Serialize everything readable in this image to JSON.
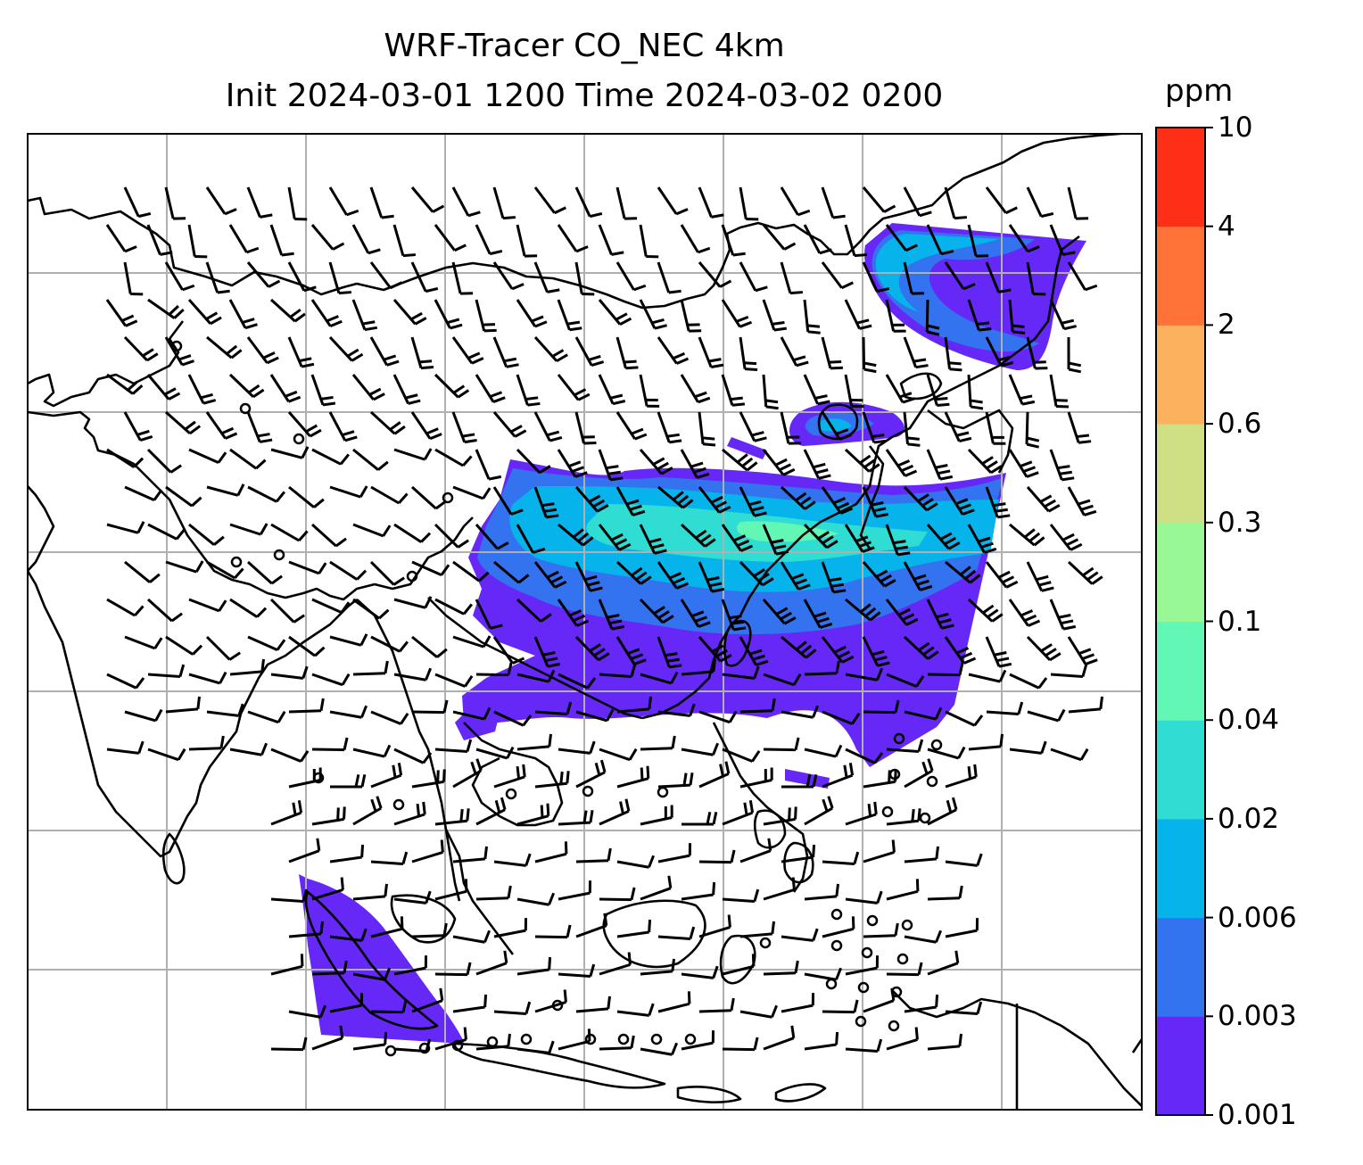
{
  "title": {
    "line1": "WRF-Tracer CO_NEC 4km",
    "line2": "Init 2024-03-01 1200 Time 2024-03-02 0200"
  },
  "colorbar": {
    "unit": "ppm",
    "levels": [
      "0.001",
      "0.003",
      "0.006",
      "0.02",
      "0.04",
      "0.1",
      "0.3",
      "0.6",
      "2",
      "4",
      "10"
    ],
    "colors": [
      "#6528f6",
      "#3373ef",
      "#06b3ea",
      "#30ddd3",
      "#63f7b6",
      "#98f896",
      "#cfe084",
      "#fbb15e",
      "#ff7339",
      "#ff2e17"
    ]
  },
  "map": {
    "coastline_color": "#000000",
    "grid_color": "#b0b0b0",
    "frame_color": "#000000"
  }
}
